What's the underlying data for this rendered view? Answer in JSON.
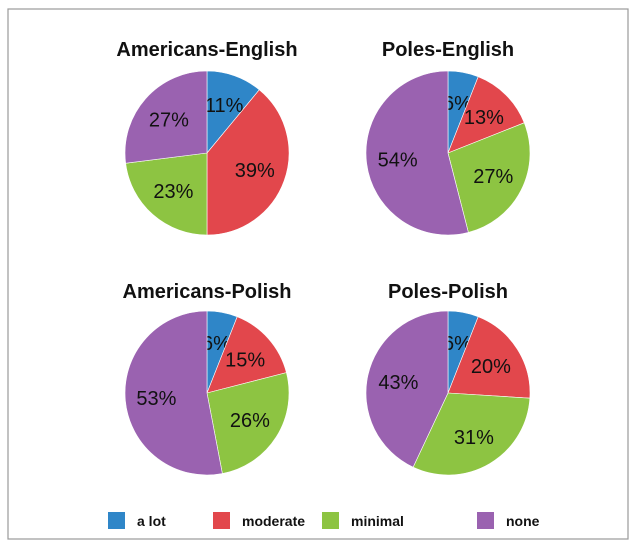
{
  "chart_data": [
    {
      "type": "pie",
      "title": "Americans-English",
      "categories": [
        "a lot",
        "moderate",
        "minimal",
        "none"
      ],
      "values": [
        11,
        39,
        23,
        27
      ],
      "labels": [
        "11%",
        "39%",
        "23%",
        "27%"
      ]
    },
    {
      "type": "pie",
      "title": "Poles-English",
      "categories": [
        "a lot",
        "moderate",
        "minimal",
        "none"
      ],
      "values": [
        6,
        13,
        27,
        54
      ],
      "labels": [
        "6%",
        "13%",
        "27%",
        "54%"
      ]
    },
    {
      "type": "pie",
      "title": "Americans-Polish",
      "categories": [
        "a lot",
        "moderate",
        "minimal",
        "none"
      ],
      "values": [
        6,
        15,
        26,
        53
      ],
      "labels": [
        "6%",
        "15%",
        "26%",
        "53%"
      ]
    },
    {
      "type": "pie",
      "title": "Poles-Polish",
      "categories": [
        "a lot",
        "moderate",
        "minimal",
        "none"
      ],
      "values": [
        6,
        20,
        31,
        43
      ],
      "labels": [
        "6%",
        "20%",
        "31%",
        "43%"
      ]
    }
  ],
  "legend": {
    "placement": "bottom",
    "items": [
      {
        "label": "a lot",
        "color": "#2f86c8"
      },
      {
        "label": "moderate",
        "color": "#e2474c"
      },
      {
        "label": "minimal",
        "color": "#8dc442"
      },
      {
        "label": "none",
        "color": "#9a62b0"
      }
    ]
  },
  "colors": [
    "#2f86c8",
    "#e2474c",
    "#8dc442",
    "#9a62b0"
  ]
}
